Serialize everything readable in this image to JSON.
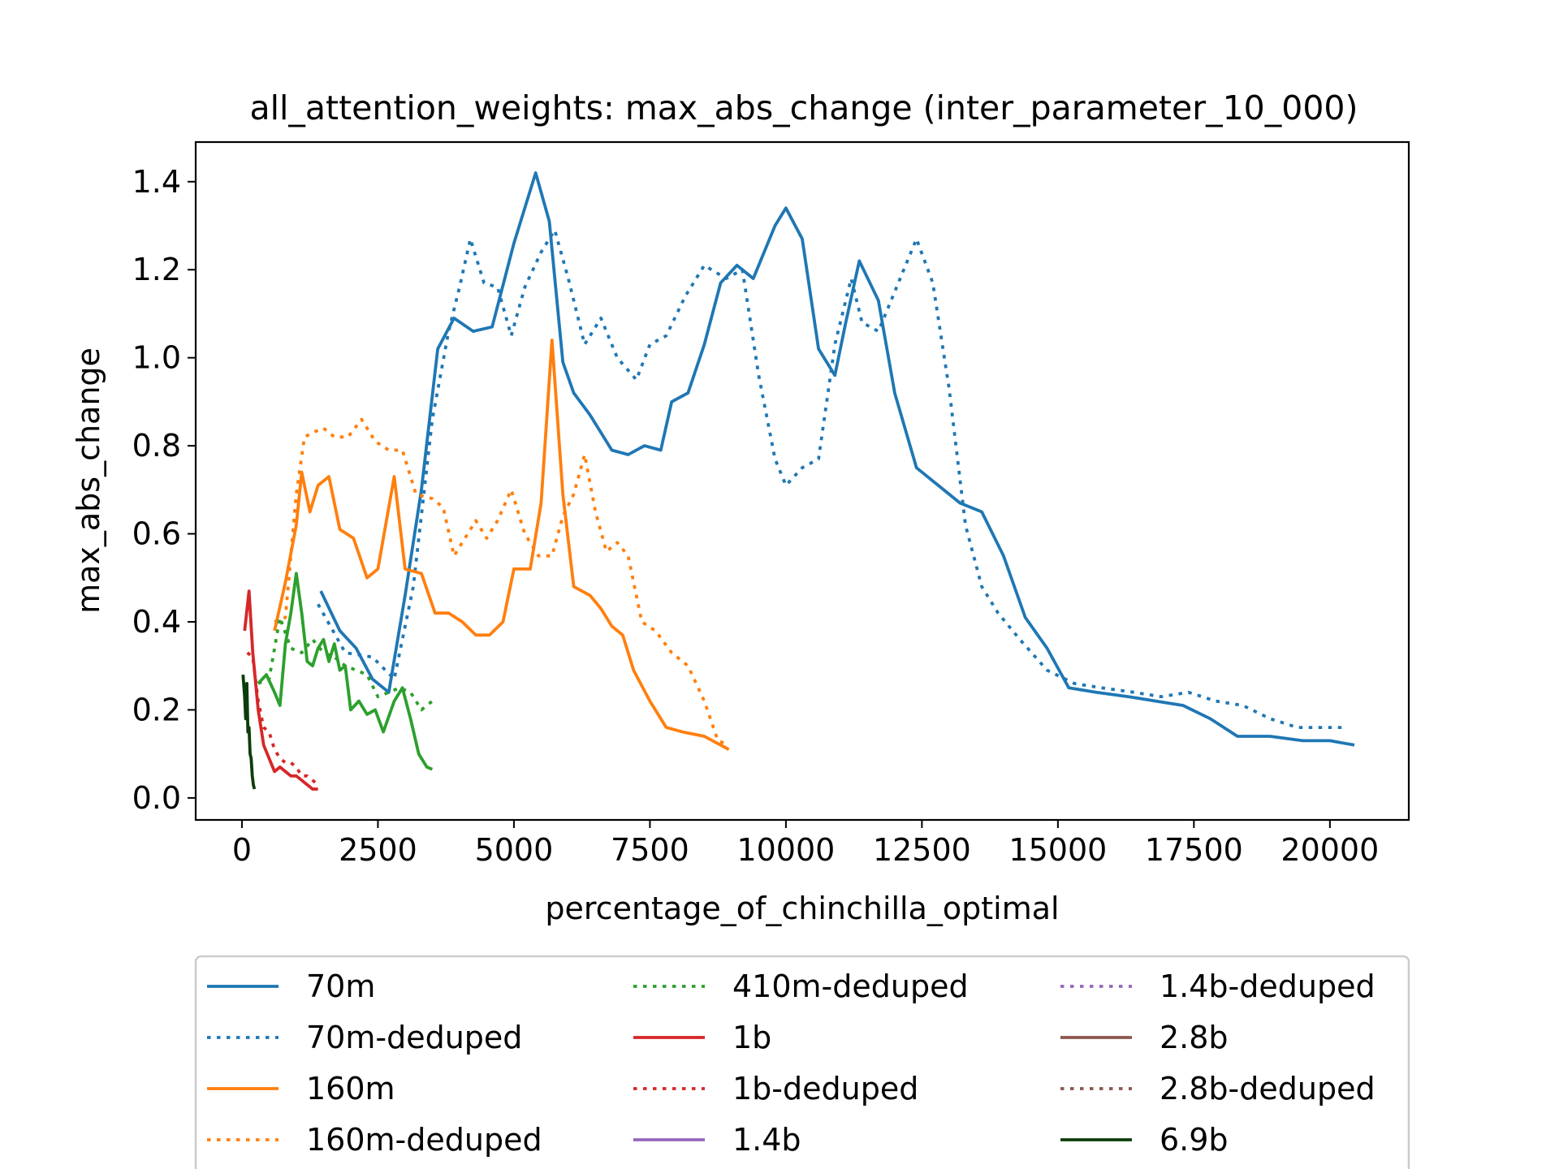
{
  "chart_data": {
    "type": "line",
    "title": "all_attention_weights: max_abs_change (inter_parameter_10_000)",
    "xlabel": "percentage_of_chinchilla_optimal",
    "ylabel": "max_abs_change",
    "xlim": [
      -850,
      21450
    ],
    "ylim": [
      -0.05,
      1.49
    ],
    "xticks": [
      0,
      2500,
      5000,
      7500,
      10000,
      12500,
      15000,
      17500,
      20000
    ],
    "yticks": [
      0.0,
      0.2,
      0.4,
      0.6,
      0.8,
      1.0,
      1.2,
      1.4
    ],
    "ytick_labels": [
      "0.0",
      "0.2",
      "0.4",
      "0.6",
      "0.8",
      "1.0",
      "1.2",
      "1.4"
    ],
    "grid": false,
    "legend": {
      "placement": "bottom, below chart, 3 columns",
      "columns": 3
    },
    "series": [
      {
        "name": "70m",
        "color": "#1f77b4",
        "style": "solid",
        "points": [
          [
            1450,
            0.47
          ],
          [
            1800,
            0.38
          ],
          [
            2100,
            0.34
          ],
          [
            2400,
            0.27
          ],
          [
            2700,
            0.24
          ],
          [
            3000,
            0.46
          ],
          [
            3300,
            0.7
          ],
          [
            3600,
            1.02
          ],
          [
            3900,
            1.09
          ],
          [
            4250,
            1.06
          ],
          [
            4600,
            1.07
          ],
          [
            5000,
            1.26
          ],
          [
            5200,
            1.34
          ],
          [
            5400,
            1.42
          ],
          [
            5650,
            1.31
          ],
          [
            5900,
            0.99
          ],
          [
            6100,
            0.92
          ],
          [
            6400,
            0.87
          ],
          [
            6800,
            0.79
          ],
          [
            7100,
            0.78
          ],
          [
            7400,
            0.8
          ],
          [
            7700,
            0.79
          ],
          [
            7900,
            0.9
          ],
          [
            8200,
            0.92
          ],
          [
            8500,
            1.03
          ],
          [
            8800,
            1.17
          ],
          [
            9100,
            1.21
          ],
          [
            9400,
            1.18
          ],
          [
            9800,
            1.3
          ],
          [
            10000,
            1.34
          ],
          [
            10300,
            1.27
          ],
          [
            10600,
            1.02
          ],
          [
            10900,
            0.96
          ],
          [
            11100,
            1.08
          ],
          [
            11350,
            1.22
          ],
          [
            11700,
            1.13
          ],
          [
            12000,
            0.92
          ],
          [
            12400,
            0.75
          ],
          [
            12800,
            0.71
          ],
          [
            13200,
            0.67
          ],
          [
            13600,
            0.65
          ],
          [
            14000,
            0.55
          ],
          [
            14400,
            0.41
          ],
          [
            14800,
            0.34
          ],
          [
            15200,
            0.25
          ],
          [
            15700,
            0.24
          ],
          [
            16300,
            0.23
          ],
          [
            16800,
            0.22
          ],
          [
            17300,
            0.21
          ],
          [
            17800,
            0.18
          ],
          [
            18300,
            0.14
          ],
          [
            18900,
            0.14
          ],
          [
            19500,
            0.13
          ],
          [
            20000,
            0.13
          ],
          [
            20450,
            0.12
          ]
        ]
      },
      {
        "name": "70m-deduped",
        "color": "#1f77b4",
        "style": "dotted",
        "points": [
          [
            1400,
            0.44
          ],
          [
            1900,
            0.33
          ],
          [
            2400,
            0.32
          ],
          [
            2800,
            0.27
          ],
          [
            3150,
            0.48
          ],
          [
            3500,
            0.86
          ],
          [
            3800,
            1.06
          ],
          [
            4000,
            1.16
          ],
          [
            4200,
            1.27
          ],
          [
            4450,
            1.17
          ],
          [
            4700,
            1.16
          ],
          [
            4950,
            1.05
          ],
          [
            5200,
            1.16
          ],
          [
            5500,
            1.24
          ],
          [
            5750,
            1.29
          ],
          [
            6000,
            1.18
          ],
          [
            6300,
            1.03
          ],
          [
            6600,
            1.09
          ],
          [
            6900,
            1.0
          ],
          [
            7250,
            0.95
          ],
          [
            7500,
            1.03
          ],
          [
            7800,
            1.05
          ],
          [
            8150,
            1.14
          ],
          [
            8500,
            1.21
          ],
          [
            8900,
            1.18
          ],
          [
            9200,
            1.2
          ],
          [
            9500,
            0.96
          ],
          [
            9800,
            0.77
          ],
          [
            10000,
            0.71
          ],
          [
            10300,
            0.75
          ],
          [
            10600,
            0.77
          ],
          [
            10900,
            1.03
          ],
          [
            11200,
            1.18
          ],
          [
            11400,
            1.08
          ],
          [
            11700,
            1.06
          ],
          [
            12100,
            1.18
          ],
          [
            12400,
            1.27
          ],
          [
            12700,
            1.17
          ],
          [
            13000,
            0.93
          ],
          [
            13300,
            0.62
          ],
          [
            13600,
            0.48
          ],
          [
            13900,
            0.42
          ],
          [
            14300,
            0.36
          ],
          [
            14800,
            0.29
          ],
          [
            15300,
            0.26
          ],
          [
            15800,
            0.25
          ],
          [
            16400,
            0.24
          ],
          [
            16900,
            0.23
          ],
          [
            17400,
            0.24
          ],
          [
            17900,
            0.22
          ],
          [
            18400,
            0.21
          ],
          [
            18900,
            0.18
          ],
          [
            19400,
            0.16
          ],
          [
            19900,
            0.16
          ],
          [
            20300,
            0.16
          ]
        ]
      },
      {
        "name": "160m",
        "color": "#ff7f0e",
        "style": "solid",
        "points": [
          [
            600,
            0.38
          ],
          [
            800,
            0.49
          ],
          [
            1000,
            0.62
          ],
          [
            1100,
            0.74
          ],
          [
            1250,
            0.65
          ],
          [
            1400,
            0.71
          ],
          [
            1600,
            0.73
          ],
          [
            1800,
            0.61
          ],
          [
            2050,
            0.59
          ],
          [
            2300,
            0.5
          ],
          [
            2500,
            0.52
          ],
          [
            2800,
            0.73
          ],
          [
            3000,
            0.52
          ],
          [
            3300,
            0.51
          ],
          [
            3550,
            0.42
          ],
          [
            3800,
            0.42
          ],
          [
            4050,
            0.4
          ],
          [
            4300,
            0.37
          ],
          [
            4550,
            0.37
          ],
          [
            4800,
            0.4
          ],
          [
            5000,
            0.52
          ],
          [
            5300,
            0.52
          ],
          [
            5500,
            0.67
          ],
          [
            5700,
            1.04
          ],
          [
            5900,
            0.69
          ],
          [
            6100,
            0.48
          ],
          [
            6400,
            0.46
          ],
          [
            6600,
            0.43
          ],
          [
            6800,
            0.39
          ],
          [
            7000,
            0.37
          ],
          [
            7200,
            0.29
          ],
          [
            7500,
            0.22
          ],
          [
            7800,
            0.16
          ],
          [
            8100,
            0.15
          ],
          [
            8500,
            0.14
          ],
          [
            8950,
            0.11
          ]
        ]
      },
      {
        "name": "160m-deduped",
        "color": "#ff7f0e",
        "style": "dotted",
        "points": [
          [
            600,
            0.4
          ],
          [
            800,
            0.41
          ],
          [
            1000,
            0.69
          ],
          [
            1150,
            0.82
          ],
          [
            1300,
            0.83
          ],
          [
            1500,
            0.84
          ],
          [
            1700,
            0.82
          ],
          [
            1950,
            0.82
          ],
          [
            2200,
            0.86
          ],
          [
            2450,
            0.81
          ],
          [
            2700,
            0.79
          ],
          [
            2950,
            0.79
          ],
          [
            3200,
            0.69
          ],
          [
            3500,
            0.68
          ],
          [
            3700,
            0.66
          ],
          [
            3900,
            0.55
          ],
          [
            4100,
            0.59
          ],
          [
            4300,
            0.63
          ],
          [
            4500,
            0.59
          ],
          [
            4700,
            0.63
          ],
          [
            4950,
            0.7
          ],
          [
            5200,
            0.6
          ],
          [
            5450,
            0.55
          ],
          [
            5700,
            0.55
          ],
          [
            5900,
            0.64
          ],
          [
            6100,
            0.69
          ],
          [
            6300,
            0.78
          ],
          [
            6500,
            0.65
          ],
          [
            6700,
            0.56
          ],
          [
            6900,
            0.58
          ],
          [
            7100,
            0.55
          ],
          [
            7350,
            0.4
          ],
          [
            7600,
            0.38
          ],
          [
            7900,
            0.33
          ],
          [
            8200,
            0.3
          ],
          [
            8500,
            0.22
          ],
          [
            8750,
            0.13
          ],
          [
            8950,
            0.12
          ]
        ]
      },
      {
        "name": "410m-deduped",
        "color": "#2ca02c",
        "style": "dotted",
        "points": [
          [
            300,
            0.26
          ],
          [
            500,
            0.27
          ],
          [
            700,
            0.41
          ],
          [
            900,
            0.34
          ],
          [
            1100,
            0.33
          ],
          [
            1300,
            0.36
          ],
          [
            1500,
            0.33
          ],
          [
            1700,
            0.32
          ],
          [
            1900,
            0.3
          ],
          [
            2100,
            0.29
          ],
          [
            2300,
            0.28
          ],
          [
            2500,
            0.23
          ],
          [
            2700,
            0.24
          ],
          [
            2900,
            0.25
          ],
          [
            3100,
            0.24
          ],
          [
            3300,
            0.2
          ],
          [
            3500,
            0.22
          ]
        ]
      },
      {
        "name": "1b",
        "color": "#d62728",
        "style": "solid",
        "points": [
          [
            50,
            0.38
          ],
          [
            130,
            0.47
          ],
          [
            200,
            0.33
          ],
          [
            300,
            0.2
          ],
          [
            400,
            0.12
          ],
          [
            500,
            0.09
          ],
          [
            600,
            0.06
          ],
          [
            700,
            0.07
          ],
          [
            800,
            0.06
          ],
          [
            900,
            0.05
          ],
          [
            1000,
            0.05
          ],
          [
            1100,
            0.04
          ],
          [
            1200,
            0.03
          ],
          [
            1300,
            0.02
          ],
          [
            1400,
            0.02
          ]
        ]
      },
      {
        "name": "1b-deduped",
        "color": "#d62728",
        "style": "dotted",
        "points": [
          [
            100,
            0.33
          ],
          [
            200,
            0.32
          ],
          [
            300,
            0.22
          ],
          [
            400,
            0.16
          ],
          [
            500,
            0.15
          ],
          [
            600,
            0.11
          ],
          [
            700,
            0.09
          ],
          [
            800,
            0.08
          ],
          [
            900,
            0.08
          ],
          [
            1000,
            0.07
          ],
          [
            1100,
            0.05
          ],
          [
            1200,
            0.05
          ],
          [
            1300,
            0.04
          ],
          [
            1400,
            0.03
          ]
        ]
      },
      {
        "name": "1.4b",
        "color": "#9467bd",
        "style": "solid",
        "points": []
      },
      {
        "name": "1.4b-deduped",
        "color": "#9467bd",
        "style": "dotted",
        "points": []
      },
      {
        "name": "2.8b",
        "color": "#8c564b",
        "style": "solid",
        "points": []
      },
      {
        "name": "2.8b-deduped",
        "color": "#8c564b",
        "style": "dotted",
        "points": []
      },
      {
        "name": "6.9b",
        "color": "#0b3d0b",
        "style": "solid",
        "points": [
          [
            20,
            0.28
          ],
          [
            50,
            0.23
          ],
          [
            70,
            0.18
          ],
          [
            90,
            0.26
          ],
          [
            110,
            0.15
          ],
          [
            130,
            0.16
          ],
          [
            150,
            0.1
          ],
          [
            170,
            0.09
          ],
          [
            190,
            0.05
          ],
          [
            210,
            0.03
          ],
          [
            230,
            0.02
          ]
        ]
      }
    ],
    "extra_segments": [
      {
        "of": "410m",
        "color": "#2ca02c",
        "style": "solid",
        "points": [
          [
            300,
            0.26
          ],
          [
            450,
            0.28
          ],
          [
            600,
            0.24
          ],
          [
            700,
            0.21
          ],
          [
            800,
            0.35
          ],
          [
            900,
            0.42
          ],
          [
            1000,
            0.51
          ],
          [
            1100,
            0.42
          ],
          [
            1200,
            0.31
          ],
          [
            1300,
            0.3
          ],
          [
            1400,
            0.34
          ],
          [
            1500,
            0.36
          ],
          [
            1600,
            0.31
          ],
          [
            1700,
            0.35
          ],
          [
            1800,
            0.29
          ],
          [
            1900,
            0.3
          ],
          [
            2000,
            0.2
          ],
          [
            2150,
            0.22
          ],
          [
            2300,
            0.19
          ],
          [
            2450,
            0.2
          ],
          [
            2600,
            0.15
          ],
          [
            2800,
            0.22
          ],
          [
            2950,
            0.25
          ],
          [
            3100,
            0.18
          ],
          [
            3250,
            0.1
          ],
          [
            3400,
            0.07
          ],
          [
            3500,
            0.065
          ]
        ]
      }
    ]
  }
}
